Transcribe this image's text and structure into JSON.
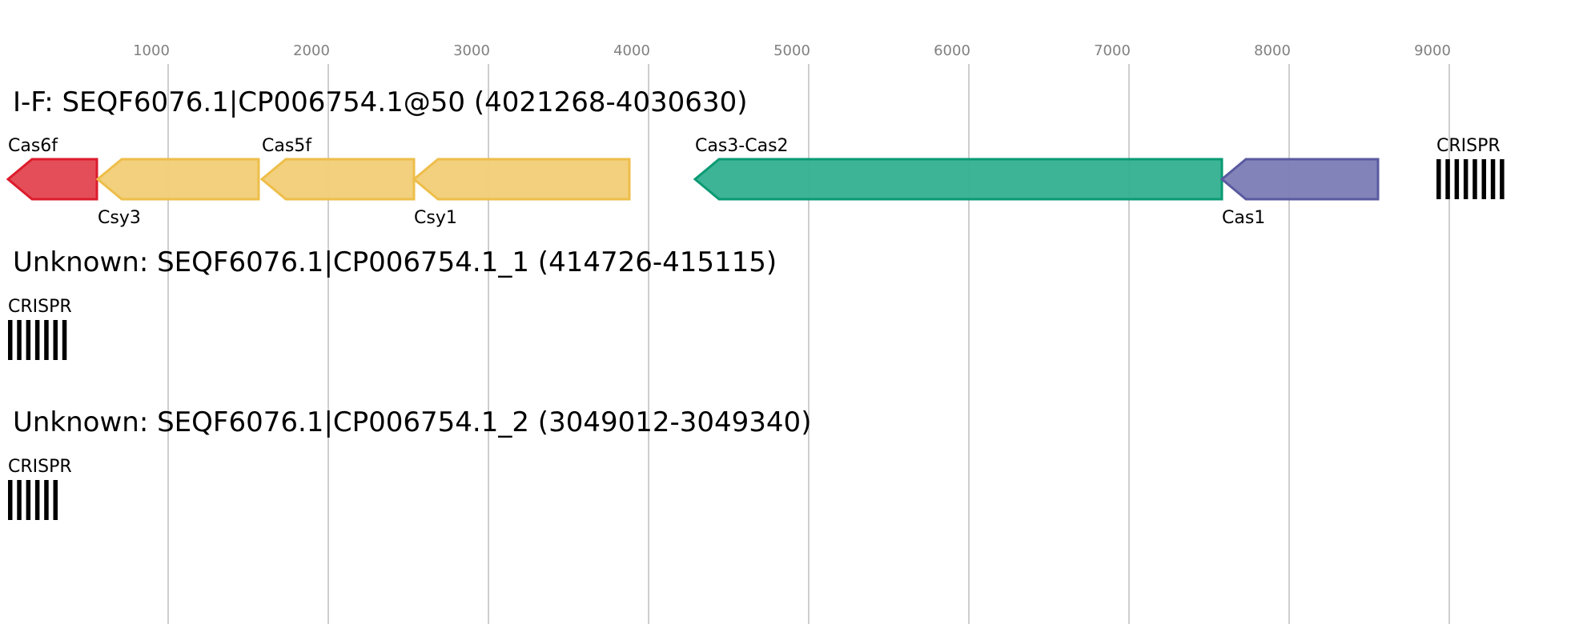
{
  "axis": {
    "ticks": [
      1000,
      2000,
      3000,
      4000,
      5000,
      6000,
      7000,
      8000,
      9000
    ],
    "range": [
      0,
      9800
    ]
  },
  "colors": {
    "Cas6f": {
      "fill": "#e34550",
      "stroke": "#dc1c2c"
    },
    "Csy": {
      "fill": "#f1cd76",
      "stroke": "#eebe4a"
    },
    "Cas3-Cas2": {
      "fill": "#33b08f",
      "stroke": "#0a9a74"
    },
    "Cas1": {
      "fill": "#7b7cb4",
      "stroke": "#5a5aa0"
    },
    "CRISPR": "#000000"
  },
  "loci": [
    {
      "title": "I-F: SEQF6076.1|CP006754.1@50 (4021268-4030630)",
      "genes": [
        {
          "name": "Cas6f",
          "start": 0,
          "end": 555,
          "strand": "-",
          "color": "Cas6f",
          "label_pos": "above"
        },
        {
          "name": "Csy3",
          "start": 560,
          "end": 1565,
          "strand": "-",
          "color": "Csy",
          "label_pos": "below"
        },
        {
          "name": "Cas5f",
          "start": 1585,
          "end": 2535,
          "strand": "-",
          "color": "Csy",
          "label_pos": "above"
        },
        {
          "name": "Csy1",
          "start": 2535,
          "end": 3880,
          "strand": "-",
          "color": "Csy",
          "label_pos": "below"
        },
        {
          "name": "Cas3-Cas2",
          "start": 4290,
          "end": 7580,
          "strand": "-",
          "color": "Cas3-Cas2",
          "label_pos": "above"
        },
        {
          "name": "Cas1",
          "start": 7580,
          "end": 8555,
          "strand": "-",
          "color": "Cas1",
          "label_pos": "below"
        }
      ],
      "crispr": {
        "label": "CRISPR",
        "start": 8920,
        "repeats": 8
      }
    },
    {
      "title": "Unknown: SEQF6076.1|CP006754.1_1 (414726-415115)",
      "genes": [],
      "crispr": {
        "label": "CRISPR",
        "start": 0,
        "repeats": 7
      }
    },
    {
      "title": "Unknown: SEQF6076.1|CP006754.1_2 (3049012-3049340)",
      "genes": [],
      "crispr": {
        "label": "CRISPR",
        "start": 0,
        "repeats": 6
      }
    }
  ]
}
